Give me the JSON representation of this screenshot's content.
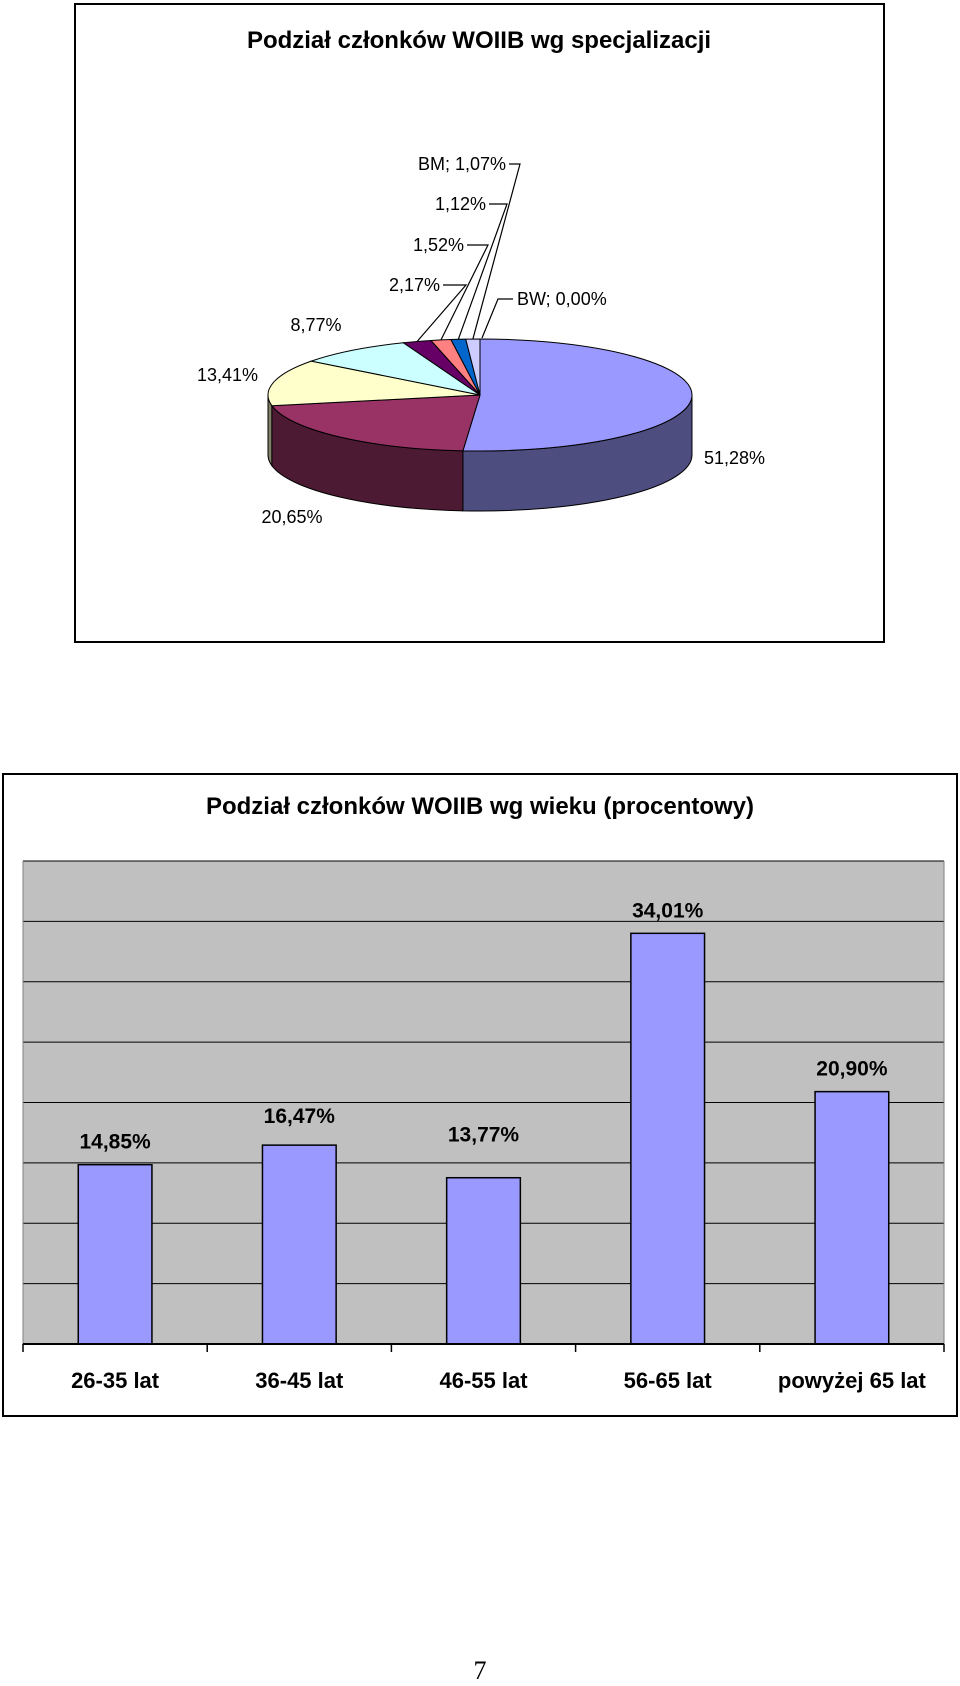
{
  "chart_data": [
    {
      "type": "pie",
      "title": "Podział członków WOIIB wg specjalizacji",
      "three_d": true,
      "slices": [
        {
          "name": "",
          "value": 51.28,
          "label": "51,28%",
          "color": "#9999ff"
        },
        {
          "name": "",
          "value": 20.65,
          "label": "20,65%",
          "color": "#993366"
        },
        {
          "name": "",
          "value": 13.41,
          "label": "13,41%",
          "color": "#ffffcc"
        },
        {
          "name": "",
          "value": 8.77,
          "label": "8,77%",
          "color": "#ccffff"
        },
        {
          "name": "",
          "value": 2.17,
          "label": "2,17%",
          "color": "#660066"
        },
        {
          "name": "",
          "value": 1.52,
          "label": "1,52%",
          "color": "#ff8080"
        },
        {
          "name": "",
          "value": 1.12,
          "label": "1,12%",
          "color": "#0066cc"
        },
        {
          "name": "BM",
          "value": 1.07,
          "label": "BM; 1,07%",
          "color": "#ccccff"
        },
        {
          "name": "BW",
          "value": 0.0,
          "label": "BW; 0,00%",
          "color": "#000080"
        }
      ]
    },
    {
      "type": "bar",
      "title": "Podział członków WOIIB wg wieku (procentowy)",
      "categories": [
        "26-35 lat",
        "36-45 lat",
        "46-55 lat",
        "56-65 lat",
        "powyżej 65 lat"
      ],
      "values": [
        14.85,
        16.47,
        13.77,
        34.01,
        20.9
      ],
      "value_labels": [
        "14,85%",
        "16,47%",
        "13,77%",
        "34,01%",
        "20,90%"
      ],
      "ylim": [
        0,
        40
      ],
      "grid": true,
      "plot_background": "#c0c0c0",
      "bar_color": "#9999ff"
    }
  ],
  "page_number": "7"
}
